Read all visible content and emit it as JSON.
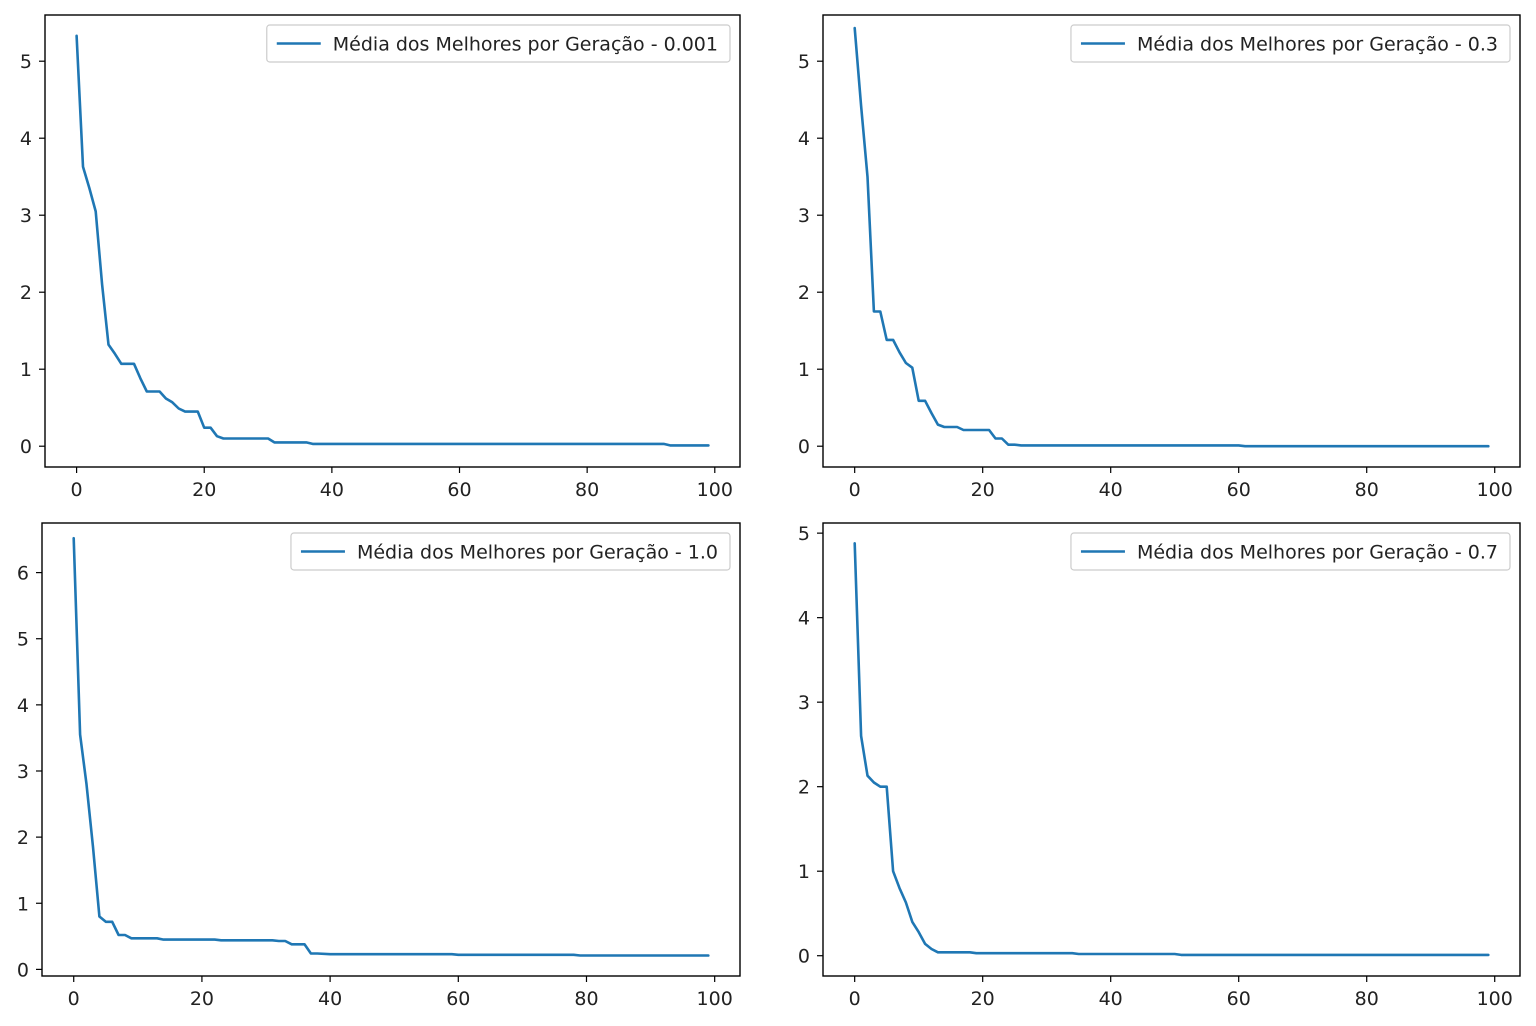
{
  "chart_data": [
    {
      "type": "line",
      "legend_position": "upper right",
      "grid": false,
      "xlim": [
        -4.95,
        103.95
      ],
      "ylim": [
        -0.27,
        5.6
      ],
      "xticks": [
        0,
        20,
        40,
        60,
        80,
        100
      ],
      "yticks": [
        0,
        1,
        2,
        3,
        4,
        5
      ],
      "series": [
        {
          "name": "Média dos Melhores por Geração - 0.001",
          "color": "#1f77b4",
          "x": [
            0,
            1,
            2,
            3,
            4,
            5,
            6,
            7,
            8,
            9,
            10,
            11,
            12,
            13,
            14,
            15,
            16,
            17,
            18,
            19,
            20,
            21,
            22,
            23,
            30,
            31,
            36,
            37,
            92,
            93,
            99
          ],
          "y": [
            5.33,
            3.63,
            3.35,
            3.05,
            2.1,
            1.32,
            1.2,
            1.07,
            1.07,
            1.07,
            0.88,
            0.71,
            0.71,
            0.71,
            0.62,
            0.57,
            0.49,
            0.45,
            0.45,
            0.45,
            0.24,
            0.24,
            0.13,
            0.1,
            0.1,
            0.05,
            0.05,
            0.03,
            0.03,
            0.01,
            0.01
          ]
        }
      ]
    },
    {
      "type": "line",
      "legend_position": "upper right",
      "grid": false,
      "xlim": [
        -4.95,
        103.95
      ],
      "ylim": [
        -0.27,
        5.6
      ],
      "xticks": [
        0,
        20,
        40,
        60,
        80,
        100
      ],
      "yticks": [
        0,
        1,
        2,
        3,
        4,
        5
      ],
      "series": [
        {
          "name": "Média dos Melhores por Geração - 0.3",
          "color": "#1f77b4",
          "x": [
            0,
            1,
            2,
            3,
            4,
            5,
            6,
            7,
            8,
            9,
            10,
            11,
            12,
            13,
            14,
            15,
            16,
            17,
            18,
            19,
            20,
            21,
            22,
            23,
            24,
            25,
            26,
            60,
            61,
            99
          ],
          "y": [
            5.43,
            4.42,
            3.5,
            1.75,
            1.75,
            1.38,
            1.38,
            1.22,
            1.08,
            1.02,
            0.59,
            0.59,
            0.43,
            0.28,
            0.25,
            0.25,
            0.25,
            0.21,
            0.21,
            0.21,
            0.21,
            0.21,
            0.1,
            0.1,
            0.02,
            0.02,
            0.01,
            0.01,
            0.0,
            0.0
          ]
        }
      ]
    },
    {
      "type": "line",
      "legend_position": "upper right",
      "grid": false,
      "xlim": [
        -4.95,
        103.95
      ],
      "ylim": [
        -0.1,
        6.75
      ],
      "xticks": [
        0,
        20,
        40,
        60,
        80,
        100
      ],
      "yticks": [
        0,
        1,
        2,
        3,
        4,
        5,
        6
      ],
      "series": [
        {
          "name": "Média dos Melhores por Geração - 1.0",
          "color": "#1f77b4",
          "x": [
            0,
            1,
            2,
            3,
            4,
            5,
            6,
            7,
            8,
            9,
            10,
            13,
            14,
            22,
            23,
            31,
            32,
            33,
            34,
            35,
            36,
            37,
            38,
            40,
            59,
            60,
            78,
            79,
            99
          ],
          "y": [
            6.52,
            3.55,
            2.8,
            1.85,
            0.8,
            0.72,
            0.72,
            0.52,
            0.52,
            0.47,
            0.47,
            0.47,
            0.45,
            0.45,
            0.44,
            0.44,
            0.43,
            0.43,
            0.38,
            0.38,
            0.38,
            0.24,
            0.24,
            0.23,
            0.23,
            0.22,
            0.22,
            0.21,
            0.21
          ]
        }
      ]
    },
    {
      "type": "line",
      "legend_position": "upper right",
      "grid": false,
      "xlim": [
        -4.95,
        103.95
      ],
      "ylim": [
        -0.24,
        5.12
      ],
      "xticks": [
        0,
        20,
        40,
        60,
        80,
        100
      ],
      "yticks": [
        0,
        1,
        2,
        3,
        4,
        5
      ],
      "series": [
        {
          "name": "Média dos Melhores por Geração - 0.7",
          "color": "#1f77b4",
          "x": [
            0,
            1,
            2,
            3,
            4,
            5,
            6,
            7,
            8,
            9,
            10,
            11,
            12,
            13,
            18,
            19,
            34,
            35,
            50,
            51,
            99
          ],
          "y": [
            4.88,
            2.6,
            2.13,
            2.05,
            2.0,
            2.0,
            1.0,
            0.8,
            0.63,
            0.4,
            0.28,
            0.14,
            0.08,
            0.04,
            0.04,
            0.03,
            0.03,
            0.02,
            0.02,
            0.01,
            0.01
          ]
        }
      ]
    }
  ]
}
